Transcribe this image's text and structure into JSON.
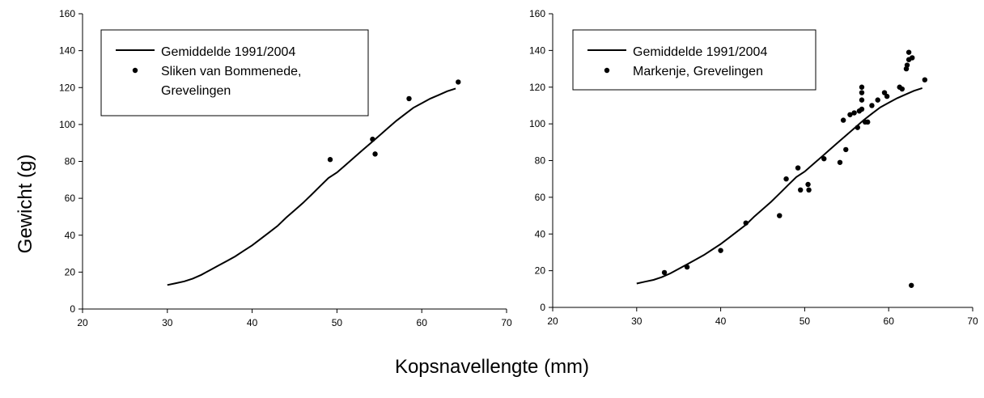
{
  "figure": {
    "shared_ylabel": "Gewicht (g)",
    "shared_xlabel": "Kopsnavellengte (mm)"
  },
  "chart_data": [
    {
      "type": "scatter",
      "title": "",
      "xlabel": "Kopsnavellengte (mm)",
      "ylabel": "Gewicht (g)",
      "xlim": [
        20,
        70
      ],
      "ylim": [
        0,
        160
      ],
      "xticks": [
        20,
        30,
        40,
        50,
        60,
        70
      ],
      "yticks": [
        0,
        20,
        40,
        60,
        80,
        100,
        120,
        140,
        160
      ],
      "grid": false,
      "legend_position": "top-left",
      "series": [
        {
          "name": "Gemiddelde 1991/2004",
          "kind": "line",
          "x": [
            30,
            31,
            32,
            33,
            34,
            35,
            36,
            37,
            38,
            39,
            40,
            41,
            42,
            43,
            44,
            45,
            46,
            47,
            48,
            49,
            50,
            51,
            52,
            53,
            54,
            55,
            56,
            57,
            58,
            59,
            60,
            61,
            62,
            63,
            64
          ],
          "y": [
            13,
            14,
            15,
            16.5,
            18.5,
            21,
            23.5,
            26,
            28.5,
            31.5,
            34.5,
            38,
            41.5,
            45,
            49.5,
            53.5,
            57.5,
            62,
            66.5,
            71,
            74,
            78,
            82,
            86,
            90,
            94,
            98,
            102,
            105.5,
            109,
            111.5,
            114,
            116,
            118,
            119.5
          ]
        },
        {
          "name": "Sliken van Bommenede, Grevelingen",
          "kind": "points",
          "x": [
            49.2,
            54.2,
            54.5,
            58.5,
            64.3
          ],
          "y": [
            81,
            92,
            84,
            114,
            123
          ]
        }
      ],
      "legend": [
        "Gemiddelde 1991/2004",
        "Sliken van Bommenede,",
        "Grevelingen"
      ]
    },
    {
      "type": "scatter",
      "title": "",
      "xlabel": "Kopsnavellengte (mm)",
      "ylabel": "Gewicht (g)",
      "xlim": [
        20,
        70
      ],
      "ylim": [
        0,
        160
      ],
      "xticks": [
        20,
        30,
        40,
        50,
        60,
        70
      ],
      "yticks": [
        0,
        20,
        40,
        60,
        80,
        100,
        120,
        140,
        160
      ],
      "grid": false,
      "legend_position": "top-left",
      "series": [
        {
          "name": "Gemiddelde 1991/2004",
          "kind": "line",
          "x": [
            30,
            31,
            32,
            33,
            34,
            35,
            36,
            37,
            38,
            39,
            40,
            41,
            42,
            43,
            44,
            45,
            46,
            47,
            48,
            49,
            50,
            51,
            52,
            53,
            54,
            55,
            56,
            57,
            58,
            59,
            60,
            61,
            62,
            63,
            64
          ],
          "y": [
            13,
            14,
            15,
            16.5,
            18.5,
            21,
            23.5,
            26,
            28.5,
            31.5,
            34.5,
            38,
            41.5,
            45,
            49.5,
            53.5,
            57.5,
            62,
            66.5,
            71,
            74,
            78,
            82,
            86,
            90,
            94,
            98,
            102,
            105.5,
            109,
            111.5,
            114,
            116,
            118,
            119.5
          ]
        },
        {
          "name": "Markenje, Grevelingen",
          "kind": "points",
          "x": [
            33.3,
            36,
            40,
            43,
            47,
            47.8,
            49.2,
            49.5,
            50.4,
            50.5,
            52.3,
            54.2,
            54.6,
            54.9,
            55.4,
            55.9,
            56.3,
            56.5,
            56.8,
            56.8,
            56.8,
            56.8,
            57.2,
            57.5,
            58,
            58.7,
            59.5,
            59.8,
            61.3,
            61.6,
            62.1,
            62.2,
            62.4,
            62.4,
            62.8,
            62.7,
            64.3
          ],
          "y": [
            19,
            22,
            31,
            46,
            50,
            70,
            76,
            64,
            67,
            64,
            81,
            79,
            102,
            86,
            105,
            106,
            98,
            107,
            120,
            117,
            113,
            108,
            101,
            101,
            110,
            113,
            117,
            115,
            120,
            119,
            130,
            132,
            135,
            139,
            136,
            12,
            124
          ]
        }
      ],
      "legend": [
        "Gemiddelde 1991/2004",
        "Markenje, Grevelingen"
      ]
    }
  ]
}
